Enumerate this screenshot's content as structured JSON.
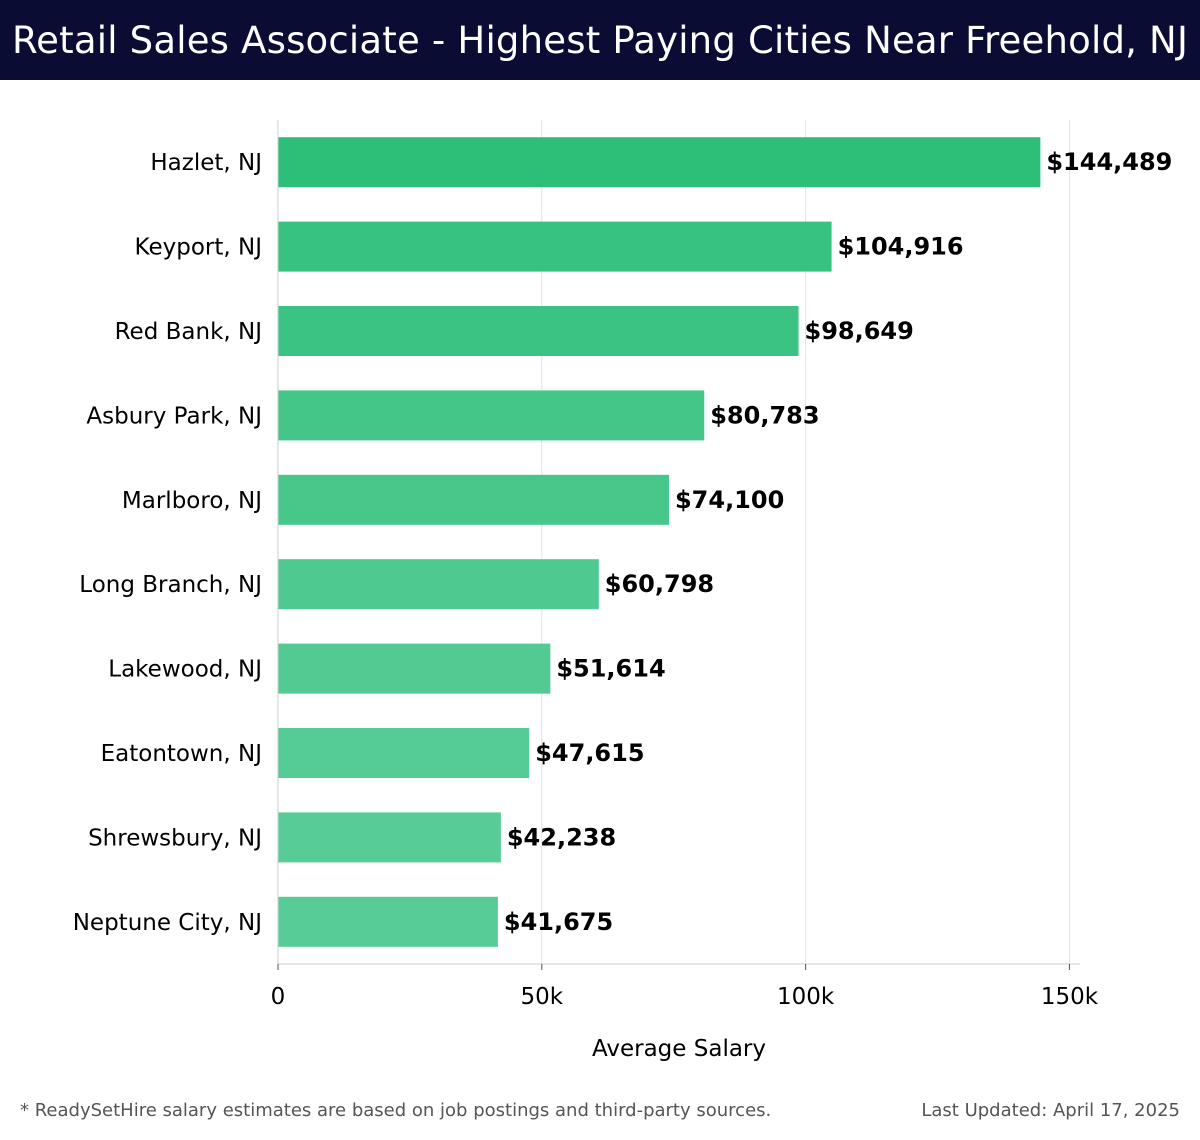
{
  "header": {
    "title": "Retail Sales Associate - Highest Paying Cities Near Freehold, NJ"
  },
  "chart_data": {
    "type": "bar",
    "orientation": "horizontal",
    "categories": [
      "Hazlet, NJ",
      "Keyport, NJ",
      "Red Bank, NJ",
      "Asbury Park, NJ",
      "Marlboro, NJ",
      "Long Branch, NJ",
      "Lakewood, NJ",
      "Eatontown, NJ",
      "Shrewsbury, NJ",
      "Neptune City, NJ"
    ],
    "values": [
      144489,
      104916,
      98649,
      80783,
      74100,
      60798,
      51614,
      47615,
      42238,
      41675
    ],
    "value_labels": [
      "$144,489",
      "$104,916",
      "$98,649",
      "$80,783",
      "$74,100",
      "$60,798",
      "$51,614",
      "$47,615",
      "$42,238",
      "$41,675"
    ],
    "xlabel": "Average Salary",
    "ylabel": "",
    "xlim": [
      0,
      152000
    ],
    "xticks": [
      0,
      50000,
      100000,
      150000
    ],
    "xtick_labels": [
      "0",
      "50k",
      "100k",
      "150k"
    ],
    "grid": "vertical",
    "bar_colors": [
      "#2dbe78",
      "#37c281",
      "#3ac383",
      "#45c689",
      "#48c78b",
      "#4ec990",
      "#52ca92",
      "#55cb95",
      "#58cc97",
      "#58cc97"
    ]
  },
  "footer": {
    "note": "* ReadySetHire salary estimates are based on job postings and third-party sources.",
    "updated": "Last Updated: April 17, 2025"
  }
}
